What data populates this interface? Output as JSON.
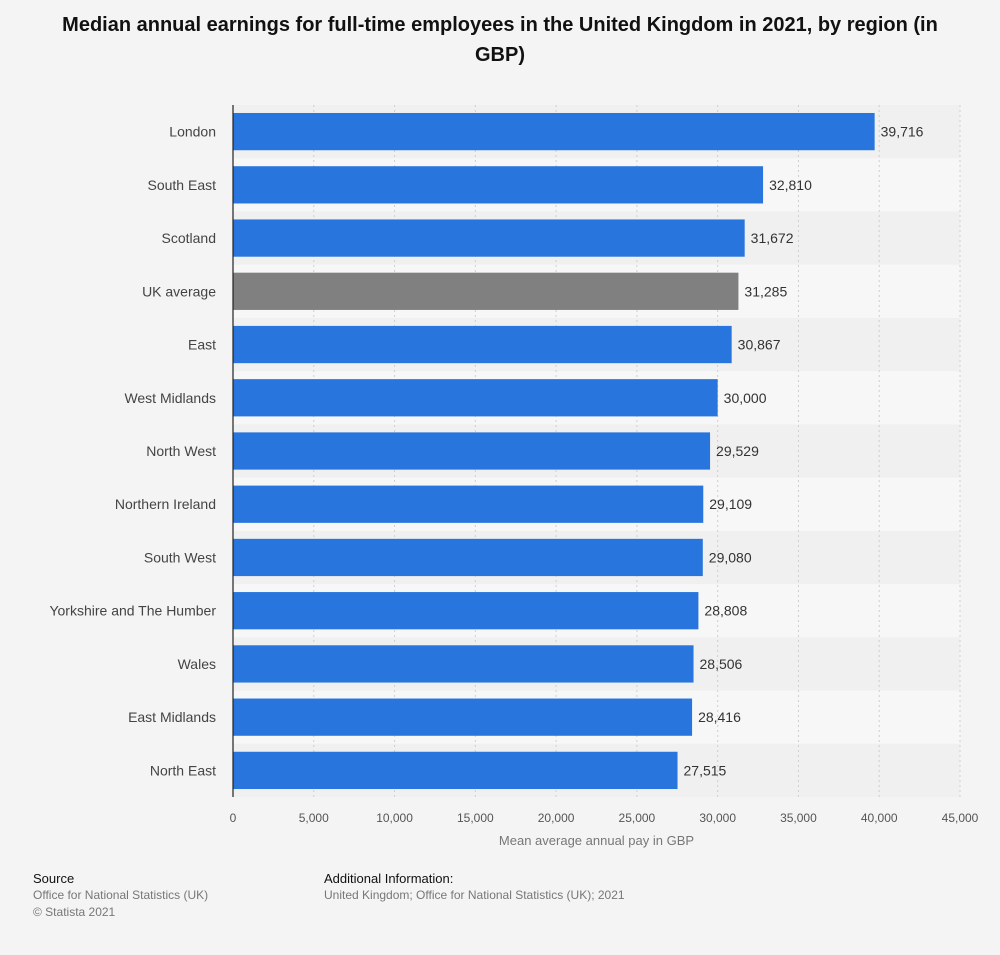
{
  "title": "Median annual earnings for full-time employees in the United Kingdom in 2021, by region (in GBP)",
  "chart_data": {
    "type": "bar",
    "orientation": "horizontal",
    "title": "Median annual earnings for full-time employees in the United Kingdom in 2021, by region (in GBP)",
    "xlabel": "Mean average annual pay in GBP",
    "ylabel": "",
    "categories": [
      "London",
      "South East",
      "Scotland",
      "UK average",
      "East",
      "West Midlands",
      "North West",
      "Northern Ireland",
      "South West",
      "Yorkshire and The Humber",
      "Wales",
      "East Midlands",
      "North East"
    ],
    "values": [
      39716,
      32810,
      31672,
      31285,
      30867,
      30000,
      29529,
      29109,
      29080,
      28808,
      28506,
      28416,
      27515
    ],
    "value_labels": [
      "39,716",
      "32,810",
      "31,672",
      "31,285",
      "30,867",
      "30,000",
      "29,529",
      "29,109",
      "29,080",
      "28,808",
      "28,506",
      "28,416",
      "27,515"
    ],
    "highlight_category": "UK average",
    "xlim": [
      0,
      45000
    ],
    "xticks": [
      0,
      5000,
      10000,
      15000,
      20000,
      25000,
      30000,
      35000,
      40000,
      45000
    ],
    "xtick_labels": [
      "0",
      "5,000",
      "10,000",
      "15,000",
      "20,000",
      "25,000",
      "30,000",
      "35,000",
      "40,000",
      "45,000"
    ],
    "grid": true,
    "colors": {
      "bar": "#2876dd",
      "highlight": "#808080",
      "stripe": "#ebebeb"
    }
  },
  "footer": {
    "source_heading": "Source",
    "source_line1": "Office for National Statistics (UK)",
    "source_line2": "© Statista 2021",
    "info_heading": "Additional Information:",
    "info_line1": "United Kingdom; Office for National Statistics (UK); 2021"
  }
}
